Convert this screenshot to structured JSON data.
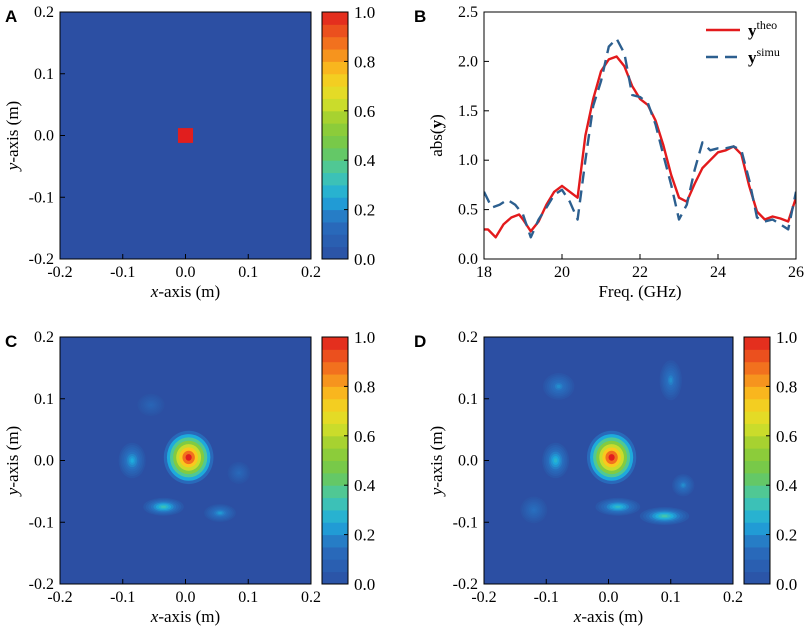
{
  "figure": {
    "colors": {
      "background": "#2c4fa3",
      "theo": "#e31a1c",
      "simu": "#2c5f8f"
    }
  },
  "chart_data": [
    {
      "panel": "A",
      "type": "heatmap",
      "title": "",
      "xlabel_var": "x",
      "xlabel_rest": "-axis (m)",
      "ylabel_var": "y",
      "ylabel_rest": "-axis (m)",
      "xlim": [
        -0.2,
        0.2
      ],
      "ylim": [
        -0.2,
        0.2
      ],
      "xticks": [
        "-0.2",
        "-0.1",
        "0.0",
        "0.1",
        "0.2"
      ],
      "yticks": [
        "-0.2",
        "-0.1",
        "0.0",
        "0.1",
        "0.2"
      ],
      "colorbar": {
        "range": [
          0,
          1
        ],
        "ticks": [
          "0.0",
          "0.2",
          "0.4",
          "0.6",
          "0.8",
          "1.0"
        ]
      },
      "features": [
        {
          "label": "target-square",
          "x": [
            -0.012,
            0.012
          ],
          "y": [
            -0.012,
            0.012
          ],
          "value": 1.0
        }
      ]
    },
    {
      "panel": "B",
      "type": "line",
      "title": "",
      "xlabel": "Freq. (GHz)",
      "ylabel_pre": "abs(",
      "ylabel_var": "y",
      "ylabel_post": ")",
      "xlim": [
        18,
        26
      ],
      "ylim": [
        0,
        2.5
      ],
      "xticks": [
        "18",
        "20",
        "22",
        "24",
        "26"
      ],
      "yticks": [
        "0.0",
        "0.5",
        "1.0",
        "1.5",
        "2.0",
        "2.5"
      ],
      "legend": "top-right",
      "series": [
        {
          "name": "theo",
          "legend_base": "y",
          "legend_sup": "theo",
          "style": "solid",
          "x": [
            18,
            18.1,
            18.3,
            18.5,
            18.7,
            18.9,
            19.0,
            19.2,
            19.4,
            19.6,
            19.8,
            20.0,
            20.2,
            20.4,
            20.6,
            20.8,
            21.0,
            21.2,
            21.4,
            21.6,
            21.8,
            22.0,
            22.2,
            22.4,
            22.6,
            22.8,
            23.0,
            23.2,
            23.4,
            23.6,
            23.8,
            24.0,
            24.2,
            24.4,
            24.6,
            24.8,
            25.0,
            25.2,
            25.4,
            25.6,
            25.8,
            26.0
          ],
          "y": [
            0.3,
            0.3,
            0.22,
            0.35,
            0.42,
            0.45,
            0.4,
            0.28,
            0.38,
            0.55,
            0.68,
            0.74,
            0.68,
            0.62,
            1.25,
            1.62,
            1.9,
            2.02,
            2.05,
            1.95,
            1.75,
            1.62,
            1.56,
            1.4,
            1.15,
            0.85,
            0.62,
            0.58,
            0.76,
            0.92,
            1.0,
            1.08,
            1.1,
            1.14,
            1.06,
            0.74,
            0.48,
            0.4,
            0.43,
            0.41,
            0.38,
            0.62
          ]
        },
        {
          "name": "simu",
          "legend_base": "y",
          "legend_sup": "simu",
          "style": "dashed",
          "x": [
            18,
            18.2,
            18.4,
            18.6,
            18.8,
            19.0,
            19.2,
            19.4,
            19.6,
            19.8,
            20.0,
            20.2,
            20.4,
            20.6,
            20.8,
            21.0,
            21.2,
            21.4,
            21.6,
            21.8,
            22.0,
            22.2,
            22.4,
            22.6,
            22.8,
            23.0,
            23.2,
            23.4,
            23.6,
            23.8,
            24.0,
            24.2,
            24.4,
            24.6,
            24.8,
            25.0,
            25.2,
            25.4,
            25.6,
            25.8,
            26.0
          ],
          "y": [
            0.68,
            0.52,
            0.55,
            0.6,
            0.55,
            0.45,
            0.22,
            0.4,
            0.52,
            0.65,
            0.7,
            0.58,
            0.4,
            1.0,
            1.55,
            1.8,
            2.15,
            2.23,
            2.08,
            1.66,
            1.64,
            1.58,
            1.36,
            1.05,
            0.75,
            0.4,
            0.55,
            0.9,
            1.18,
            1.1,
            1.12,
            1.12,
            1.14,
            1.1,
            0.8,
            0.42,
            0.38,
            0.4,
            0.35,
            0.3,
            0.68
          ]
        }
      ]
    },
    {
      "panel": "C",
      "type": "heatmap",
      "title": "",
      "xlabel_var": "x",
      "xlabel_rest": "-axis (m)",
      "ylabel_var": "y",
      "ylabel_rest": "-axis (m)",
      "xlim": [
        -0.2,
        0.2
      ],
      "ylim": [
        -0.2,
        0.2
      ],
      "xticks": [
        "-0.2",
        "-0.1",
        "0.0",
        "0.1",
        "0.2"
      ],
      "yticks": [
        "-0.2",
        "-0.1",
        "0.0",
        "0.1",
        "0.2"
      ],
      "colorbar": {
        "range": [
          0,
          1
        ],
        "ticks": [
          "0.0",
          "0.2",
          "0.4",
          "0.6",
          "0.8",
          "1.0"
        ]
      },
      "features": [
        {
          "label": "main-peak",
          "x": 0.005,
          "y": 0.005,
          "sx": 0.022,
          "sy": 0.024,
          "value": 1.0
        },
        {
          "label": "side-lobe-left",
          "x": -0.085,
          "y": 0.0,
          "sx": 0.012,
          "sy": 0.016,
          "value": 0.25
        },
        {
          "label": "side-lobe-bottom",
          "x": -0.035,
          "y": -0.075,
          "sx": 0.018,
          "sy": 0.008,
          "value": 0.32
        },
        {
          "label": "side-lobe-bottom-right",
          "x": 0.055,
          "y": -0.085,
          "sx": 0.014,
          "sy": 0.008,
          "value": 0.22
        },
        {
          "label": "side-lobe-right",
          "x": 0.085,
          "y": -0.02,
          "sx": 0.01,
          "sy": 0.01,
          "value": 0.12
        },
        {
          "label": "side-lobe-upper-left",
          "x": -0.055,
          "y": 0.09,
          "sx": 0.012,
          "sy": 0.01,
          "value": 0.1
        }
      ]
    },
    {
      "panel": "D",
      "type": "heatmap",
      "title": "",
      "xlabel_var": "x",
      "xlabel_rest": "-axis (m)",
      "ylabel_var": "y",
      "ylabel_rest": "-axis (m)",
      "xlim": [
        -0.2,
        0.2
      ],
      "ylim": [
        -0.2,
        0.2
      ],
      "xticks": [
        "-0.2",
        "-0.1",
        "0.0",
        "0.1",
        "0.2"
      ],
      "yticks": [
        "-0.2",
        "-0.1",
        "0.0",
        "0.1",
        "0.2"
      ],
      "colorbar": {
        "range": [
          0,
          1
        ],
        "ticks": [
          "0.0",
          "0.2",
          "0.4",
          "0.6",
          "0.8",
          "1.0"
        ]
      },
      "features": [
        {
          "label": "main-peak",
          "x": 0.005,
          "y": 0.005,
          "sx": 0.022,
          "sy": 0.024,
          "value": 1.0
        },
        {
          "label": "side-lobe-left",
          "x": -0.085,
          "y": 0.0,
          "sx": 0.012,
          "sy": 0.016,
          "value": 0.28
        },
        {
          "label": "side-lobe-bottom",
          "x": 0.015,
          "y": -0.075,
          "sx": 0.02,
          "sy": 0.008,
          "value": 0.3
        },
        {
          "label": "side-lobe-bottom-right",
          "x": 0.09,
          "y": -0.09,
          "sx": 0.022,
          "sy": 0.008,
          "value": 0.34
        },
        {
          "label": "side-lobe-right",
          "x": 0.12,
          "y": -0.04,
          "sx": 0.01,
          "sy": 0.01,
          "value": 0.2
        },
        {
          "label": "side-lobe-upper-left",
          "x": -0.08,
          "y": 0.12,
          "sx": 0.014,
          "sy": 0.012,
          "value": 0.2
        },
        {
          "label": "side-lobe-upper-right",
          "x": 0.1,
          "y": 0.13,
          "sx": 0.01,
          "sy": 0.018,
          "value": 0.2
        },
        {
          "label": "side-lobe-lower-left",
          "x": -0.12,
          "y": -0.08,
          "sx": 0.012,
          "sy": 0.012,
          "value": 0.15
        }
      ]
    }
  ]
}
